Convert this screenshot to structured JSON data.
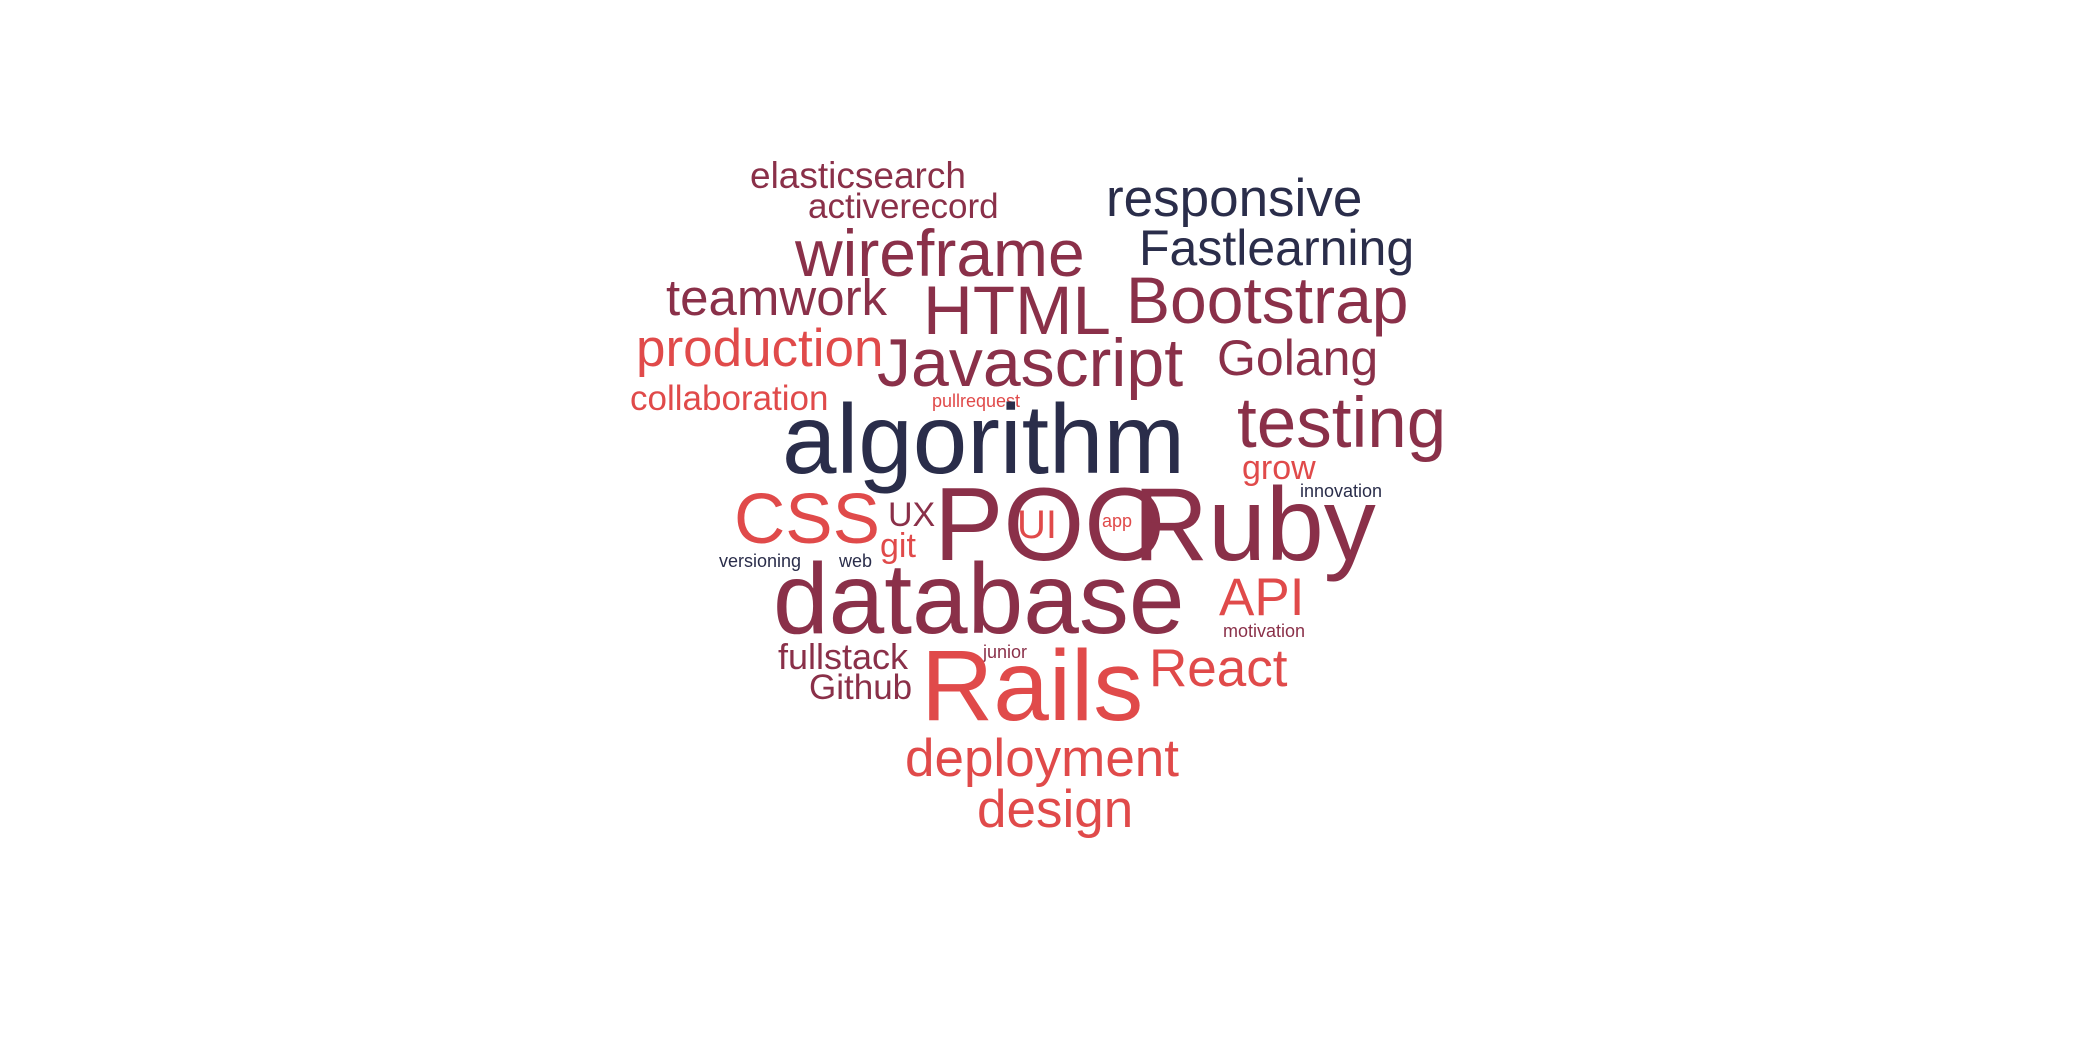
{
  "colors": {
    "navy": "#2a2d4a",
    "wine": "#8a3049",
    "red": "#e04a4a",
    "background": "#ffffff"
  },
  "words": {
    "elasticsearch": "elasticsearch",
    "activerecord": "activerecord",
    "responsive": "responsive",
    "wireframe": "wireframe",
    "fastlearning": "Fastlearning",
    "teamwork": "teamwork",
    "html": "HTML",
    "bootstrap": "Bootstrap",
    "production": "production",
    "javascript": "Javascript",
    "golang": "Golang",
    "collaboration": "collaboration",
    "pullrequest": "pullrequest",
    "algorithm": "algorithm",
    "testing": "testing",
    "grow": "grow",
    "innovation": "innovation",
    "css": "CSS",
    "ux": "UX",
    "poo": "POO",
    "ruby": "Ruby",
    "ui": "UI",
    "app": "app",
    "git": "git",
    "versioning": "versioning",
    "web": "web",
    "database": "database",
    "api": "API",
    "motivation": "motivation",
    "fullstack": "fullstack",
    "junior": "junior",
    "react": "React",
    "github": "Github",
    "rails": "Rails",
    "deployment": "deployment",
    "design": "design"
  }
}
